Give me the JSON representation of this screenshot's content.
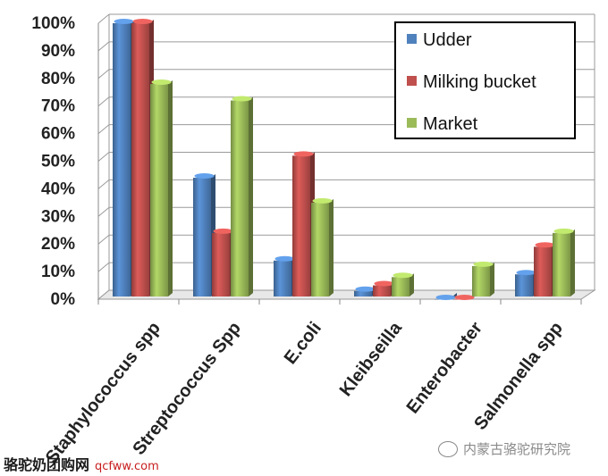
{
  "chart_data": {
    "type": "bar",
    "categories": [
      "Staphylococcus spp",
      "Streptococcus Spp",
      "E.coli",
      "Kleibseilla",
      "Enterobacter",
      "Salmonella spp"
    ],
    "series": [
      {
        "name": "Udder",
        "color": "#4f81bd",
        "values": [
          100,
          44,
          14,
          3,
          0,
          9
        ]
      },
      {
        "name": "Milking bucket",
        "color": "#c0504d",
        "values": [
          100,
          24,
          52,
          5,
          0,
          19
        ]
      },
      {
        "name": "Market",
        "color": "#9bbb59",
        "values": [
          78,
          72,
          35,
          8,
          12,
          24
        ]
      }
    ],
    "yticks": [
      "0%",
      "10%",
      "20%",
      "30%",
      "40%",
      "50%",
      "60%",
      "70%",
      "80%",
      "90%",
      "100%"
    ],
    "ylim": [
      0,
      100
    ],
    "grid": true,
    "legend": "top-right"
  },
  "watermark": {
    "left_text": "骆驼奶团购网",
    "left_url": "qcfww.com",
    "right_text": "内蒙古骆驼研究院"
  }
}
